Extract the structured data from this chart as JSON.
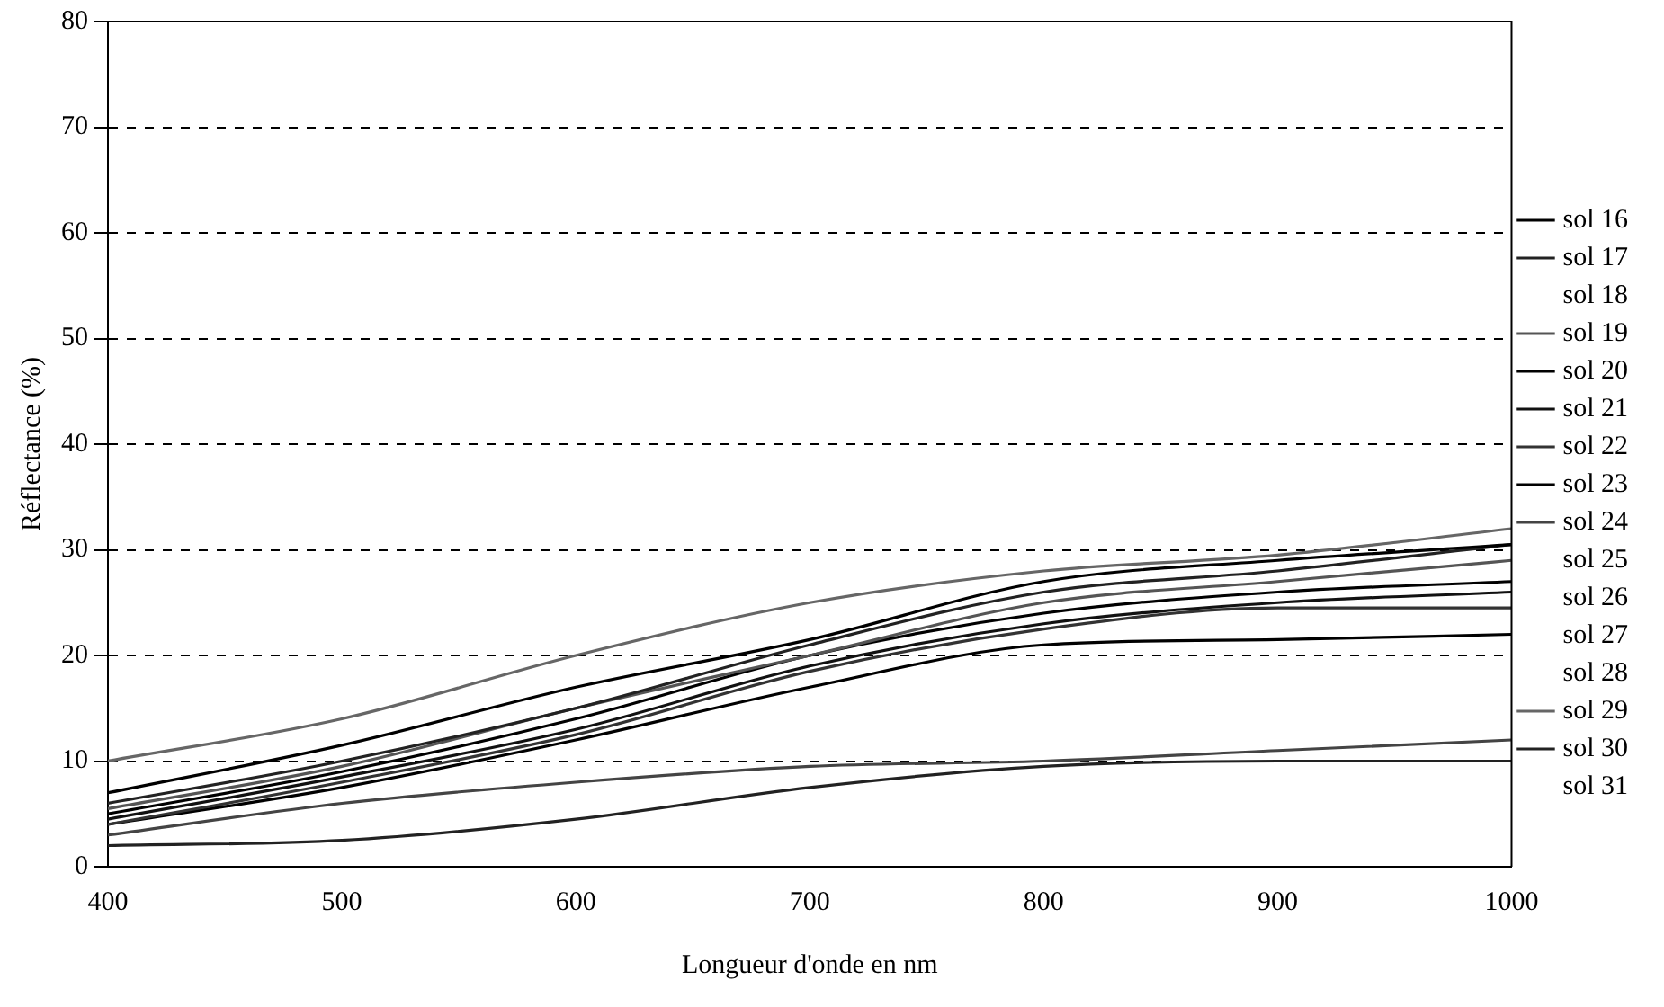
{
  "chart_data": {
    "type": "line",
    "xlabel": "Longueur d'onde en nm",
    "ylabel": "Réflectance (%)",
    "x": [
      400,
      500,
      600,
      700,
      800,
      900,
      1000
    ],
    "xlim": [
      400,
      1000
    ],
    "xticks": [
      400,
      500,
      600,
      700,
      800,
      900,
      1000
    ],
    "ylim": [
      0,
      80
    ],
    "yticks": [
      0,
      10,
      20,
      30,
      40,
      50,
      60,
      70,
      80
    ],
    "grid": "y",
    "line_style": "solid",
    "marker": "none",
    "legend": "right",
    "series": [
      {
        "name": "sol 16",
        "color": "#000000",
        "values": [
          7,
          11.5,
          17,
          21.5,
          27,
          29,
          30.5
        ]
      },
      {
        "name": "sol 17",
        "color": "#222222",
        "values": [
          6,
          10,
          15,
          21,
          26,
          28,
          30.5
        ]
      },
      {
        "name": "sol 18",
        "values": [
          null,
          null,
          null,
          null,
          null,
          null,
          null
        ]
      },
      {
        "name": "sol 19",
        "color": "#555555",
        "values": [
          5.5,
          9.5,
          15,
          20,
          25,
          27,
          29
        ]
      },
      {
        "name": "sol 20",
        "color": "#000000",
        "values": [
          5,
          9,
          14,
          20,
          24,
          26,
          27
        ]
      },
      {
        "name": "sol 21",
        "color": "#111111",
        "values": [
          4.5,
          8.5,
          13,
          19,
          23,
          25,
          26
        ]
      },
      {
        "name": "sol 22",
        "color": "#333333",
        "values": [
          4,
          8,
          12.5,
          18.5,
          22.5,
          24.5,
          24.5
        ]
      },
      {
        "name": "sol 23",
        "color": "#000000",
        "values": [
          4,
          7.5,
          12,
          17,
          21,
          21.5,
          22
        ]
      },
      {
        "name": "sol 24",
        "color": "#444444",
        "values": [
          3,
          6,
          8,
          9.5,
          10,
          11,
          12
        ]
      },
      {
        "name": "sol 25",
        "values": [
          null,
          null,
          null,
          null,
          null,
          null,
          null
        ]
      },
      {
        "name": "sol 26",
        "values": [
          null,
          null,
          null,
          null,
          null,
          null,
          null
        ]
      },
      {
        "name": "sol 27",
        "values": [
          null,
          null,
          null,
          null,
          null,
          null,
          null
        ]
      },
      {
        "name": "sol 28",
        "values": [
          null,
          null,
          null,
          null,
          null,
          null,
          null
        ]
      },
      {
        "name": "sol 29",
        "color": "#666666",
        "values": [
          10,
          14,
          20,
          25,
          28,
          29.5,
          32
        ]
      },
      {
        "name": "sol 30",
        "color": "#222222",
        "values": [
          2,
          2.5,
          4.5,
          7.5,
          9.5,
          10,
          10
        ]
      },
      {
        "name": "sol 31",
        "values": [
          null,
          null,
          null,
          null,
          null,
          null,
          null
        ]
      }
    ]
  }
}
